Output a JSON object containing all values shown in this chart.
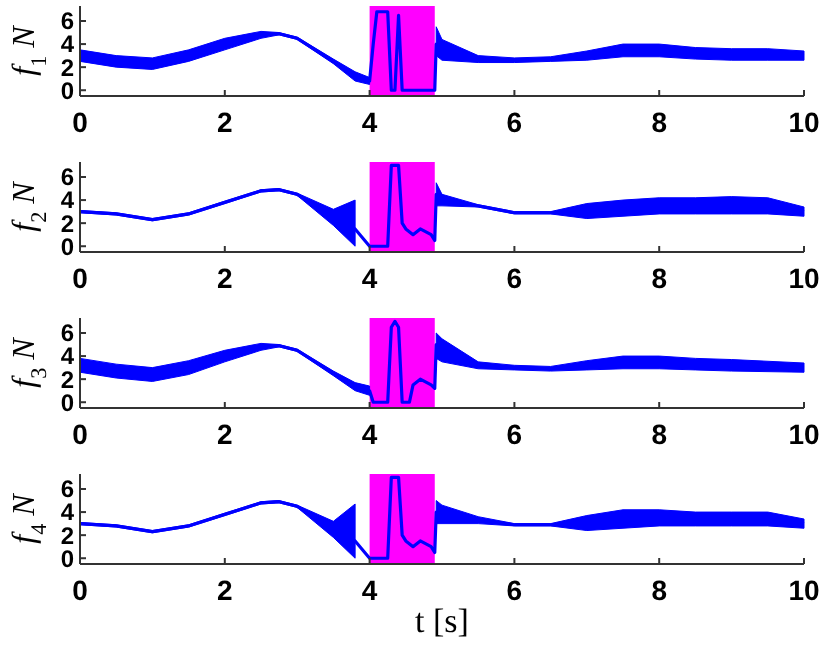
{
  "chart_data": [
    {
      "type": "line",
      "ylabel": "f$_{1}$ N",
      "x": [
        0,
        0.5,
        1,
        1.5,
        2,
        2.5,
        2.75,
        3,
        3.5,
        3.8,
        4.0,
        4.05,
        4.1,
        4.25,
        4.3,
        4.35,
        4.4,
        4.45,
        4.5,
        4.6,
        4.9,
        4.92,
        5,
        5.5,
        6,
        6.5,
        7,
        7.5,
        8,
        8.5,
        9,
        9.5,
        10
      ],
      "xlim": [
        0,
        10
      ],
      "xticks": [
        0,
        2,
        4,
        6,
        8,
        10
      ],
      "ylim": [
        -0.5,
        7.3
      ],
      "yticks": [
        0,
        2,
        4,
        6
      ],
      "grid": false,
      "bands": [
        {
          "axis": "x",
          "from": 4,
          "to": 4.9,
          "color": "#ff00ff"
        }
      ],
      "series": [
        {
          "color": "#0000ff",
          "values": [
            3,
            2.5,
            2.3,
            3,
            4,
            4.8,
            4.9,
            4.5,
            2.5,
            1.2,
            0.8,
            4,
            6.8,
            6.8,
            0,
            0,
            6.5,
            0,
            0,
            0,
            0,
            4,
            3.5,
            2.7,
            2.6,
            2.7,
            3,
            3.5,
            3.5,
            3.2,
            3.1,
            3.1,
            3
          ],
          "lower": [
            2.5,
            2,
            1.8,
            2.5,
            3.5,
            4.5,
            4.8,
            4.4,
            2.3,
            0.8,
            0.5,
            null,
            null,
            null,
            null,
            null,
            null,
            null,
            null,
            null,
            null,
            3,
            2.6,
            2.4,
            2.4,
            2.5,
            2.6,
            2.9,
            2.9,
            2.7,
            2.6,
            2.6,
            2.6
          ],
          "upper": [
            3.5,
            3,
            2.8,
            3.5,
            4.5,
            5.1,
            5,
            4.6,
            2.7,
            1.6,
            1.1,
            null,
            null,
            null,
            null,
            null,
            null,
            null,
            null,
            null,
            null,
            5.5,
            4.4,
            3,
            2.8,
            2.9,
            3.4,
            4,
            4,
            3.7,
            3.6,
            3.6,
            3.4
          ]
        }
      ]
    },
    {
      "type": "line",
      "ylabel": "f$_{2}$ N",
      "x": [
        0,
        0.5,
        1,
        1.5,
        2,
        2.5,
        2.75,
        3,
        3.5,
        3.8,
        4.0,
        4.05,
        4.25,
        4.3,
        4.4,
        4.45,
        4.5,
        4.6,
        4.7,
        4.85,
        4.9,
        4.92,
        5,
        5.5,
        6,
        6.5,
        7,
        7.5,
        8,
        8.5,
        9,
        9.5,
        10
      ],
      "xlim": [
        0,
        10
      ],
      "xticks": [
        0,
        2,
        4,
        6,
        8,
        10
      ],
      "ylim": [
        -0.5,
        7.3
      ],
      "yticks": [
        0,
        2,
        4,
        6
      ],
      "grid": false,
      "bands": [
        {
          "axis": "x",
          "from": 4,
          "to": 4.9,
          "color": "#ff00ff"
        }
      ],
      "series": [
        {
          "color": "#0000ff",
          "values": [
            3,
            2.8,
            2.3,
            2.8,
            3.8,
            4.8,
            4.9,
            4.5,
            2.5,
            1.5,
            0,
            0,
            0,
            7,
            7,
            2,
            1.5,
            1,
            1.5,
            1,
            0.5,
            4.5,
            4,
            3.5,
            2.9,
            2.9,
            3,
            3.3,
            3.5,
            3.5,
            3.6,
            3.5,
            3
          ],
          "lower": [
            2.9,
            2.7,
            2.2,
            2.7,
            3.7,
            4.7,
            4.8,
            4.4,
            1.8,
            0,
            null,
            null,
            null,
            null,
            null,
            null,
            null,
            null,
            null,
            null,
            null,
            3.5,
            3.5,
            3.4,
            2.8,
            2.8,
            2.4,
            2.6,
            2.8,
            2.8,
            2.8,
            2.8,
            2.6
          ],
          "upper": [
            3.1,
            2.9,
            2.4,
            2.9,
            3.9,
            4.9,
            5,
            4.6,
            3.2,
            4,
            null,
            null,
            null,
            null,
            null,
            null,
            null,
            null,
            null,
            null,
            null,
            5.5,
            4.5,
            3.6,
            3,
            3,
            3.7,
            4,
            4.2,
            4.2,
            4.3,
            4.2,
            3.4
          ]
        }
      ]
    },
    {
      "type": "line",
      "ylabel": "f$_{3}$ N",
      "x": [
        0,
        0.5,
        1,
        1.5,
        2,
        2.5,
        2.75,
        3,
        3.5,
        3.8,
        4.0,
        4.05,
        4.25,
        4.3,
        4.35,
        4.4,
        4.45,
        4.55,
        4.6,
        4.7,
        4.85,
        4.9,
        4.92,
        5,
        5.5,
        6,
        6.5,
        7,
        7.5,
        8,
        8.5,
        9,
        10
      ],
      "xlim": [
        0,
        10
      ],
      "xticks": [
        0,
        2,
        4,
        6,
        8,
        10
      ],
      "ylim": [
        -0.5,
        7.3
      ],
      "yticks": [
        0,
        2,
        4,
        6
      ],
      "grid": false,
      "bands": [
        {
          "axis": "x",
          "from": 4,
          "to": 4.9,
          "color": "#ff00ff"
        }
      ],
      "series": [
        {
          "color": "#0000ff",
          "values": [
            3.2,
            2.7,
            2.4,
            3,
            4,
            4.8,
            4.9,
            4.5,
            2.5,
            1.3,
            1,
            0,
            0,
            6.5,
            7,
            6.5,
            0,
            0,
            1.5,
            2,
            1.5,
            1.2,
            5,
            4.5,
            3.2,
            3,
            2.9,
            3.2,
            3.5,
            3.5,
            3.3,
            3.2,
            3
          ],
          "lower": [
            2.6,
            2.1,
            1.8,
            2.4,
            3.5,
            4.5,
            4.8,
            4.4,
            2.3,
            1,
            0.6,
            null,
            null,
            null,
            null,
            null,
            null,
            null,
            null,
            null,
            null,
            null,
            3.8,
            3.5,
            2.9,
            2.8,
            2.7,
            2.8,
            2.9,
            2.9,
            2.8,
            2.7,
            2.6
          ],
          "upper": [
            3.8,
            3.3,
            3,
            3.6,
            4.5,
            5.1,
            5,
            4.6,
            2.7,
            1.7,
            1.4,
            null,
            null,
            null,
            null,
            null,
            null,
            null,
            null,
            null,
            null,
            null,
            6,
            5.5,
            3.5,
            3.2,
            3.1,
            3.6,
            4,
            4,
            3.8,
            3.7,
            3.4
          ]
        }
      ]
    },
    {
      "type": "line",
      "ylabel": "f$_{4}$ N",
      "xlabel": "t [s]",
      "x": [
        0,
        0.5,
        1,
        1.5,
        2,
        2.5,
        2.75,
        3,
        3.5,
        3.8,
        4.0,
        4.05,
        4.25,
        4.3,
        4.4,
        4.45,
        4.5,
        4.6,
        4.7,
        4.85,
        4.9,
        4.92,
        5,
        5.5,
        6,
        6.5,
        7,
        7.5,
        8,
        8.5,
        9,
        9.5,
        10
      ],
      "xlim": [
        0,
        10
      ],
      "xticks": [
        0,
        2,
        4,
        6,
        8,
        10
      ],
      "ylim": [
        -0.5,
        7.3
      ],
      "yticks": [
        0,
        2,
        4,
        6
      ],
      "grid": false,
      "bands": [
        {
          "axis": "x",
          "from": 4,
          "to": 4.9,
          "color": "#ff00ff"
        }
      ],
      "series": [
        {
          "color": "#0000ff",
          "values": [
            3,
            2.8,
            2.3,
            2.8,
            3.8,
            4.8,
            4.9,
            4.5,
            2.5,
            1.5,
            0,
            0,
            0,
            7,
            7,
            2,
            1.5,
            1,
            1.5,
            1,
            0.5,
            4,
            3.8,
            3.3,
            2.9,
            2.9,
            3,
            3.2,
            3.4,
            3.5,
            3.5,
            3.5,
            3
          ],
          "lower": [
            2.9,
            2.7,
            2.2,
            2.7,
            3.7,
            4.7,
            4.8,
            4.4,
            1.8,
            0,
            null,
            null,
            null,
            null,
            null,
            null,
            null,
            null,
            null,
            null,
            null,
            3,
            3,
            3,
            2.8,
            2.8,
            2.4,
            2.6,
            2.8,
            2.8,
            2.8,
            2.8,
            2.6
          ],
          "upper": [
            3.1,
            2.9,
            2.4,
            2.9,
            3.9,
            4.9,
            5,
            4.6,
            3.2,
            4.7,
            null,
            null,
            null,
            null,
            null,
            null,
            null,
            null,
            null,
            null,
            null,
            5,
            4.6,
            3.6,
            3,
            3,
            3.7,
            4.2,
            4.2,
            4,
            4,
            4,
            3.4
          ]
        }
      ]
    }
  ]
}
